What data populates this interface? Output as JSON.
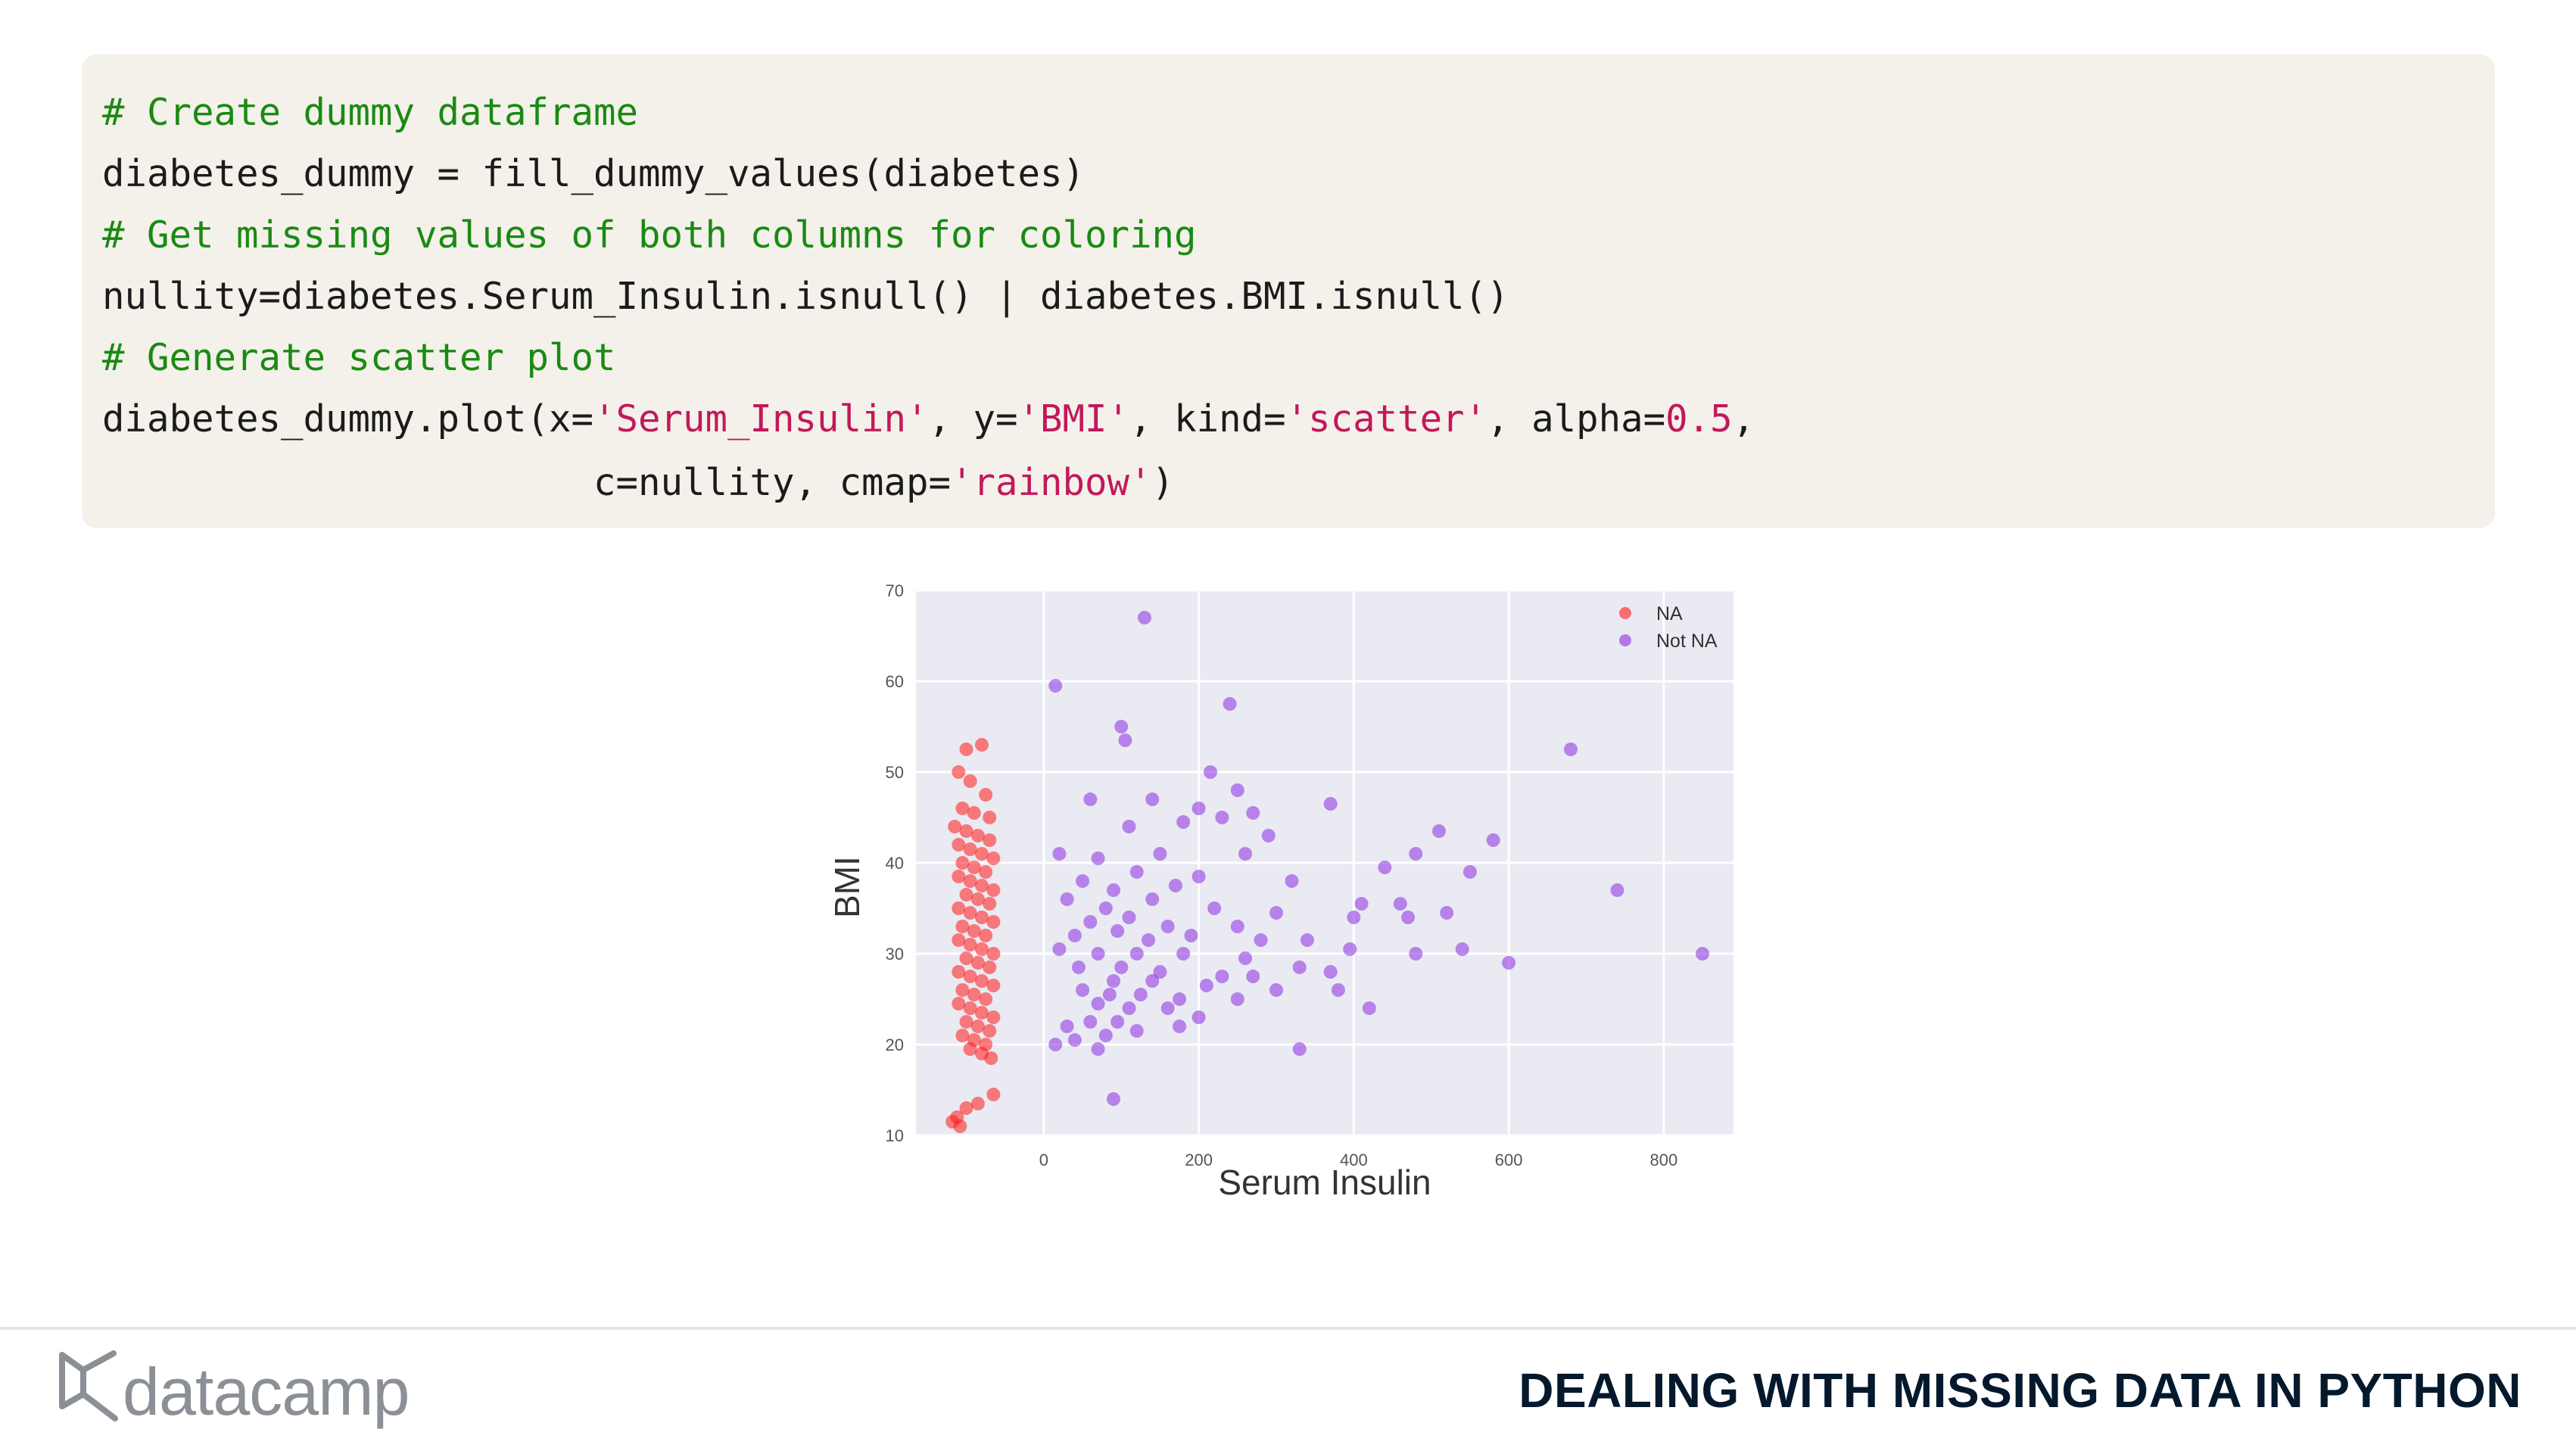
{
  "code": {
    "line1": "# Create dummy dataframe",
    "line2": "diabetes_dummy = fill_dummy_values(diabetes)",
    "line3": "# Get missing values of both columns for coloring",
    "line4": "nullity=diabetes.Serum_Insulin.isnull() | diabetes.BMI.isnull()",
    "line5": "# Generate scatter plot",
    "line6": {
      "a": "diabetes_dummy.plot(x=",
      "b": "'Serum_Insulin'",
      "c": ", y=",
      "d": "'BMI'",
      "e": ", kind=",
      "f": "'scatter'",
      "g": ", alpha=",
      "h": "0.5",
      "i": ","
    },
    "line7": {
      "indent": "                      ",
      "a": "c=nullity, cmap=",
      "b": "'rainbow'",
      "c": ")"
    }
  },
  "chart_data": {
    "type": "scatter",
    "xlabel": "Serum Insulin",
    "ylabel": "BMI",
    "xlim": [
      -165,
      890
    ],
    "ylim": [
      10,
      70
    ],
    "xticks": [
      0,
      200,
      400,
      600,
      800
    ],
    "yticks": [
      10,
      20,
      30,
      40,
      50,
      60,
      70
    ],
    "grid": true,
    "legend_position": "top-right",
    "colors": {
      "NA": "#ff1a1a",
      "Not NA": "#8a2be2",
      "background": "#eaeaf2"
    },
    "series": [
      {
        "name": "NA",
        "points": [
          [
            -100,
            52.5
          ],
          [
            -80,
            53
          ],
          [
            -110,
            50
          ],
          [
            -95,
            49
          ],
          [
            -75,
            47.5
          ],
          [
            -105,
            46
          ],
          [
            -90,
            45.5
          ],
          [
            -70,
            45
          ],
          [
            -115,
            44
          ],
          [
            -100,
            43.5
          ],
          [
            -85,
            43
          ],
          [
            -70,
            42.5
          ],
          [
            -110,
            42
          ],
          [
            -95,
            41.5
          ],
          [
            -80,
            41
          ],
          [
            -65,
            40.5
          ],
          [
            -105,
            40
          ],
          [
            -90,
            39.5
          ],
          [
            -75,
            39
          ],
          [
            -110,
            38.5
          ],
          [
            -95,
            38
          ],
          [
            -80,
            37.5
          ],
          [
            -65,
            37
          ],
          [
            -100,
            36.5
          ],
          [
            -85,
            36
          ],
          [
            -70,
            35.5
          ],
          [
            -110,
            35
          ],
          [
            -95,
            34.5
          ],
          [
            -80,
            34
          ],
          [
            -65,
            33.5
          ],
          [
            -105,
            33
          ],
          [
            -90,
            32.5
          ],
          [
            -75,
            32
          ],
          [
            -110,
            31.5
          ],
          [
            -95,
            31
          ],
          [
            -80,
            30.5
          ],
          [
            -65,
            30
          ],
          [
            -100,
            29.5
          ],
          [
            -85,
            29
          ],
          [
            -70,
            28.5
          ],
          [
            -110,
            28
          ],
          [
            -95,
            27.5
          ],
          [
            -80,
            27
          ],
          [
            -65,
            26.5
          ],
          [
            -105,
            26
          ],
          [
            -90,
            25.5
          ],
          [
            -75,
            25
          ],
          [
            -110,
            24.5
          ],
          [
            -95,
            24
          ],
          [
            -80,
            23.5
          ],
          [
            -65,
            23
          ],
          [
            -100,
            22.5
          ],
          [
            -85,
            22
          ],
          [
            -70,
            21.5
          ],
          [
            -105,
            21
          ],
          [
            -90,
            20.5
          ],
          [
            -75,
            20
          ],
          [
            -95,
            19.5
          ],
          [
            -80,
            19
          ],
          [
            -68,
            18.5
          ],
          [
            -112,
            12
          ],
          [
            -100,
            13
          ],
          [
            -85,
            13.5
          ],
          [
            -65,
            14.5
          ],
          [
            -118,
            11.5
          ],
          [
            -108,
            11
          ]
        ]
      },
      {
        "name": "Not NA",
        "points": [
          [
            130,
            67
          ],
          [
            15,
            59.5
          ],
          [
            240,
            57.5
          ],
          [
            100,
            55
          ],
          [
            105,
            53.5
          ],
          [
            680,
            52.5
          ],
          [
            215,
            50
          ],
          [
            250,
            48
          ],
          [
            60,
            47
          ],
          [
            140,
            47
          ],
          [
            200,
            46
          ],
          [
            270,
            45.5
          ],
          [
            370,
            46.5
          ],
          [
            230,
            45
          ],
          [
            180,
            44.5
          ],
          [
            110,
            44
          ],
          [
            290,
            43
          ],
          [
            580,
            42.5
          ],
          [
            510,
            43.5
          ],
          [
            20,
            41
          ],
          [
            70,
            40.5
          ],
          [
            150,
            41
          ],
          [
            260,
            41
          ],
          [
            480,
            41
          ],
          [
            440,
            39.5
          ],
          [
            550,
            39
          ],
          [
            50,
            38
          ],
          [
            120,
            39
          ],
          [
            200,
            38.5
          ],
          [
            320,
            38
          ],
          [
            740,
            37
          ],
          [
            90,
            37
          ],
          [
            170,
            37.5
          ],
          [
            410,
            35.5
          ],
          [
            460,
            35.5
          ],
          [
            30,
            36
          ],
          [
            80,
            35
          ],
          [
            140,
            36
          ],
          [
            220,
            35
          ],
          [
            300,
            34.5
          ],
          [
            520,
            34.5
          ],
          [
            60,
            33.5
          ],
          [
            110,
            34
          ],
          [
            160,
            33
          ],
          [
            250,
            33
          ],
          [
            400,
            34
          ],
          [
            470,
            34
          ],
          [
            40,
            32
          ],
          [
            95,
            32.5
          ],
          [
            135,
            31.5
          ],
          [
            190,
            32
          ],
          [
            280,
            31.5
          ],
          [
            340,
            31.5
          ],
          [
            20,
            30.5
          ],
          [
            70,
            30
          ],
          [
            120,
            30
          ],
          [
            180,
            30
          ],
          [
            260,
            29.5
          ],
          [
            480,
            30
          ],
          [
            540,
            30.5
          ],
          [
            395,
            30.5
          ],
          [
            850,
            30
          ],
          [
            600,
            29
          ],
          [
            45,
            28.5
          ],
          [
            100,
            28.5
          ],
          [
            150,
            28
          ],
          [
            230,
            27.5
          ],
          [
            330,
            28.5
          ],
          [
            90,
            27
          ],
          [
            140,
            27
          ],
          [
            210,
            26.5
          ],
          [
            270,
            27.5
          ],
          [
            370,
            28
          ],
          [
            50,
            26
          ],
          [
            85,
            25.5
          ],
          [
            125,
            25.5
          ],
          [
            175,
            25
          ],
          [
            250,
            25
          ],
          [
            300,
            26
          ],
          [
            380,
            26
          ],
          [
            70,
            24.5
          ],
          [
            110,
            24
          ],
          [
            160,
            24
          ],
          [
            420,
            24
          ],
          [
            200,
            23
          ],
          [
            60,
            22.5
          ],
          [
            95,
            22.5
          ],
          [
            30,
            22
          ],
          [
            80,
            21
          ],
          [
            120,
            21.5
          ],
          [
            175,
            22
          ],
          [
            40,
            20.5
          ],
          [
            70,
            19.5
          ],
          [
            15,
            20
          ],
          [
            330,
            19.5
          ],
          [
            90,
            14
          ]
        ]
      }
    ]
  },
  "footer": {
    "logo_text": "datacamp",
    "title": "DEALING WITH MISSING DATA IN PYTHON"
  }
}
